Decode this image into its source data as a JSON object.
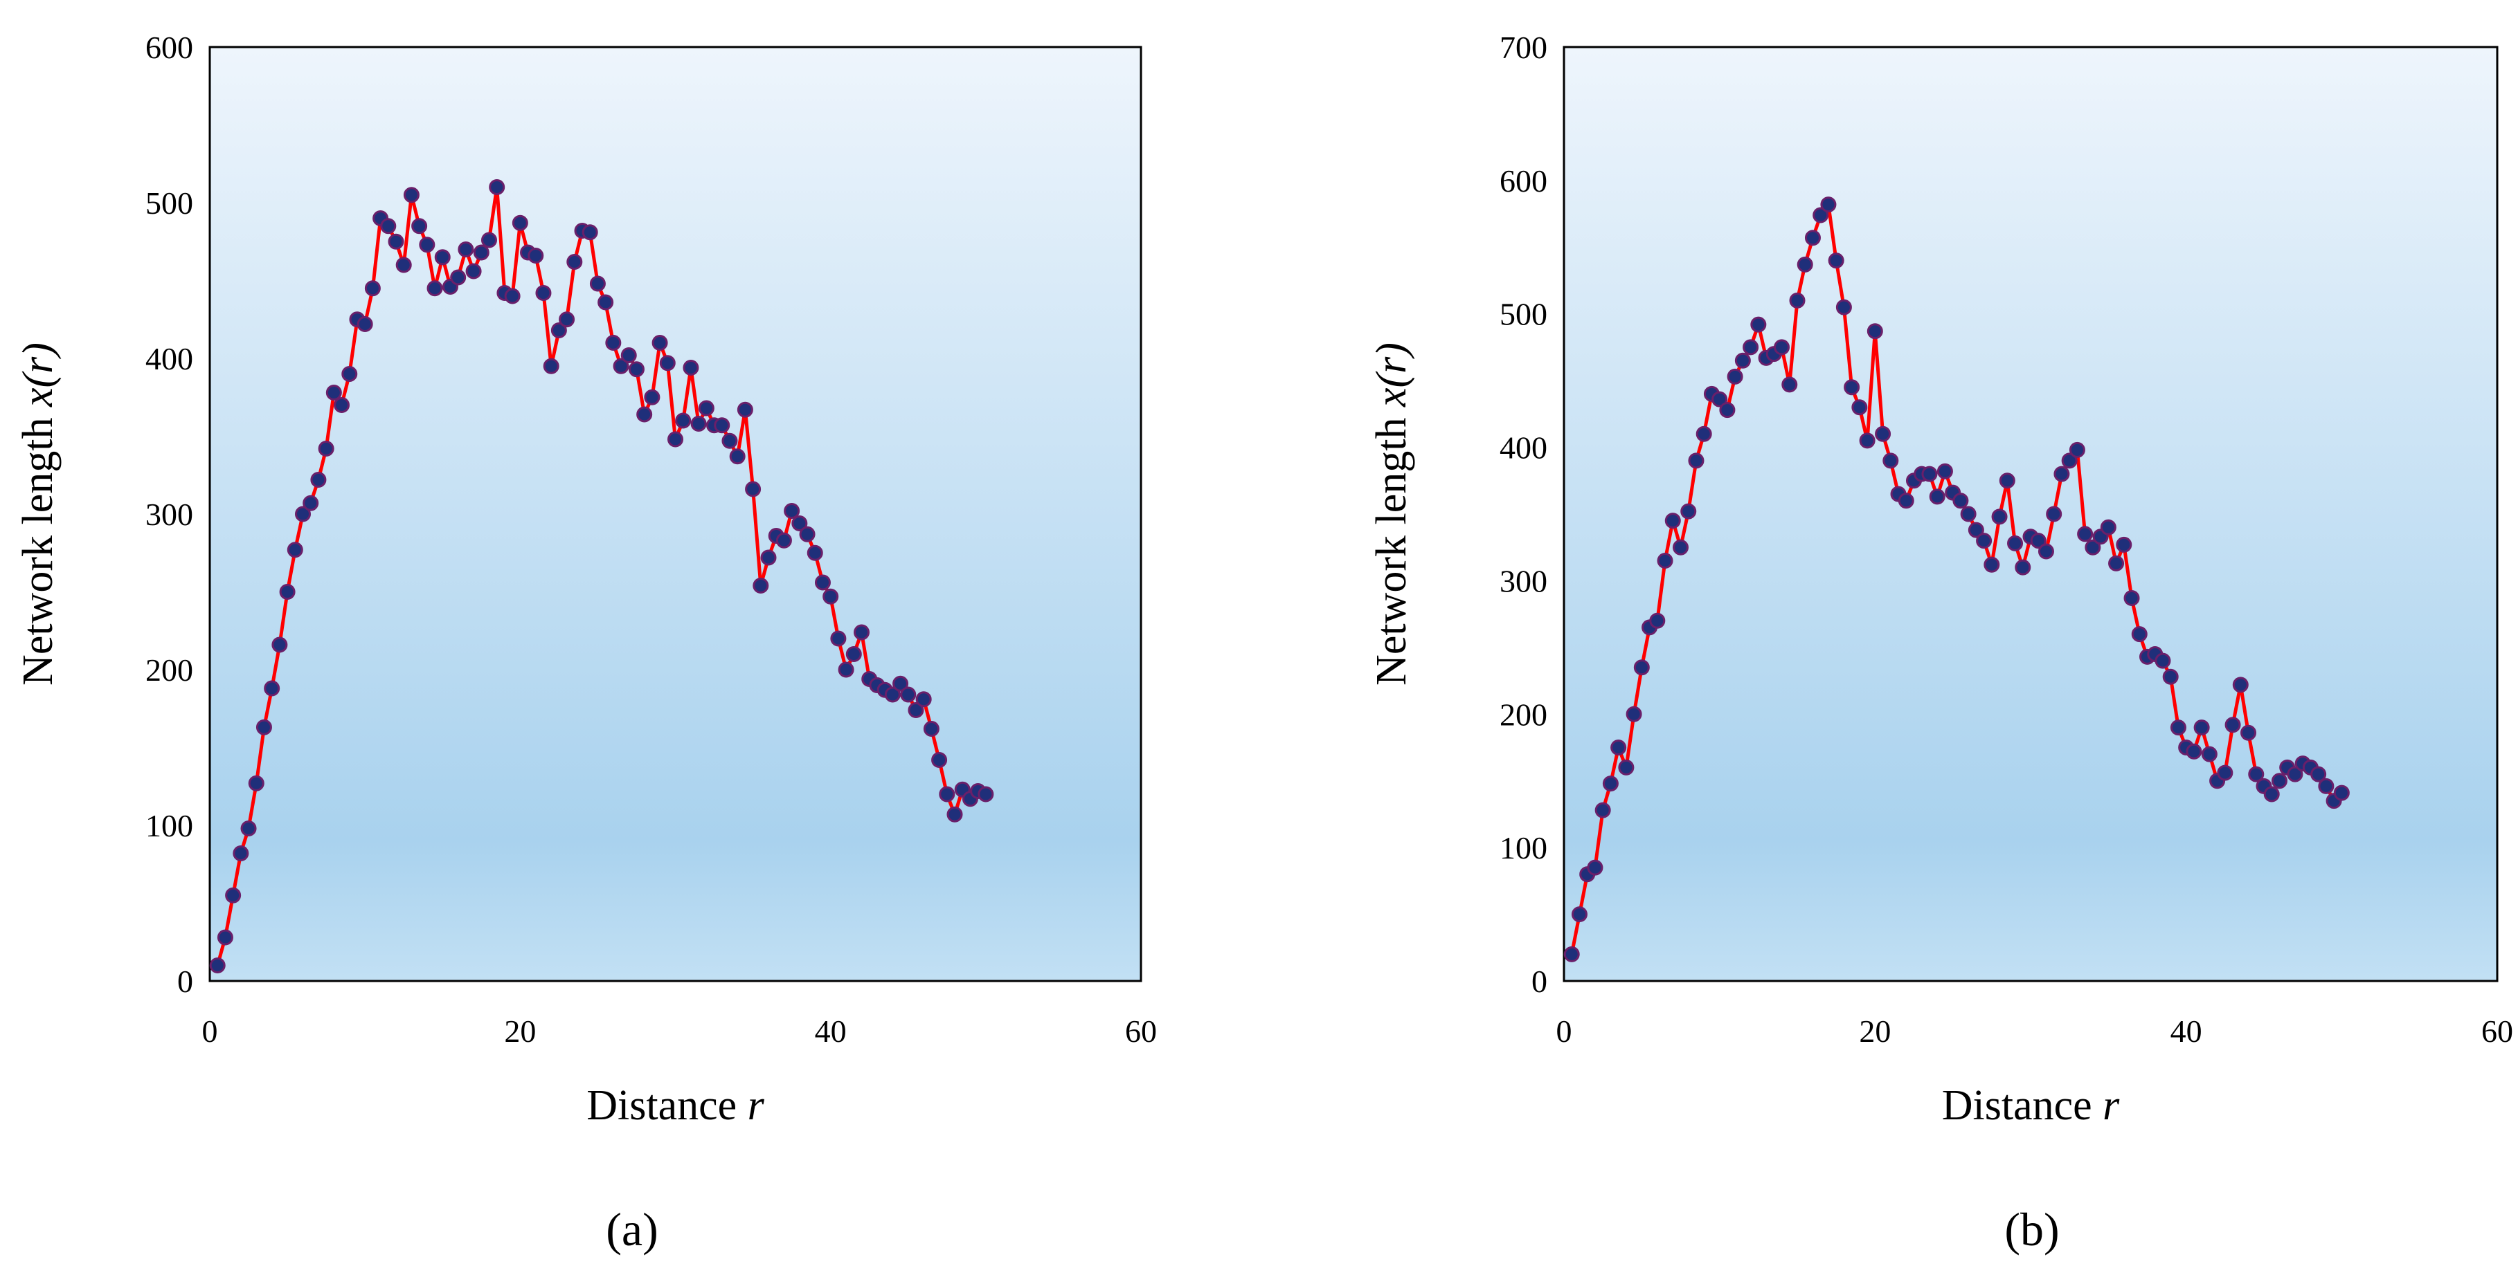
{
  "colors": {
    "line": "#ff0000",
    "marker_fill": "#1f2f7a",
    "marker_edge": "#6a1f6a",
    "bg_top": "#eef5fc",
    "bg_bottom": "#a9d2ee",
    "axis": "#000000"
  },
  "chart_data": [
    {
      "type": "line",
      "panel": "a",
      "panel_label": "(a)",
      "xlabel": "Distance r",
      "xlabel_main": "Distance ",
      "xlabel_var": "r",
      "ylabel": "Network length x(r)",
      "ylabel_main": "Network length ",
      "ylabel_var": "x(r)",
      "xlim": [
        0,
        60
      ],
      "ylim": [
        0,
        600
      ],
      "xticks": [
        0,
        20,
        40,
        60
      ],
      "yticks": [
        0,
        100,
        200,
        300,
        400,
        500,
        600
      ],
      "grid": false,
      "x": [
        0.5,
        1,
        1.5,
        2,
        2.5,
        3,
        3.5,
        4,
        4.5,
        5,
        5.5,
        6,
        6.5,
        7,
        7.5,
        8,
        8.5,
        9,
        9.5,
        10,
        10.5,
        11,
        11.5,
        12,
        12.5,
        13,
        13.5,
        14,
        14.5,
        15,
        15.5,
        16,
        16.5,
        17,
        17.5,
        18,
        18.5,
        19,
        19.5,
        20,
        20.5,
        21,
        21.5,
        22,
        22.5,
        23,
        23.5,
        24,
        24.5,
        25,
        25.5,
        26,
        26.5,
        27,
        27.5,
        28,
        28.5,
        29,
        29.5,
        30,
        30.5,
        31,
        31.5,
        32,
        32.5,
        33,
        33.5,
        34,
        34.5,
        35,
        35.5,
        36,
        36.5,
        37,
        37.5,
        38,
        38.5,
        39,
        39.5,
        40,
        40.5,
        41,
        41.5,
        42,
        42.5,
        43,
        43.5,
        44,
        44.5,
        45,
        45.5,
        46,
        46.5,
        47,
        47.5,
        48,
        48.5,
        49,
        49.5,
        50
      ],
      "values": [
        10,
        28,
        55,
        82,
        98,
        127,
        163,
        188,
        216,
        250,
        277,
        300,
        307,
        322,
        342,
        378,
        370,
        390,
        425,
        422,
        445,
        490,
        485,
        475,
        460,
        505,
        485,
        473,
        445,
        465,
        446,
        452,
        470,
        456,
        468,
        476,
        510,
        442,
        440,
        487,
        468,
        466,
        442,
        395,
        418,
        425,
        462,
        482,
        481,
        448,
        436,
        410,
        395,
        402,
        393,
        364,
        375,
        410,
        397,
        348,
        360,
        394,
        358,
        368,
        357,
        357,
        347,
        337,
        367,
        316,
        254,
        272,
        286,
        283,
        302,
        294,
        287,
        275,
        256,
        247,
        220,
        200,
        210,
        224,
        194,
        190,
        187,
        184,
        191,
        184,
        174,
        181,
        162,
        142,
        120,
        107,
        123,
        117,
        122,
        120
      ]
    },
    {
      "type": "line",
      "panel": "b",
      "panel_label": "(b)",
      "xlabel": "Distance r",
      "xlabel_main": "Distance ",
      "xlabel_var": "r",
      "ylabel": "Network length x(r)",
      "ylabel_main": "Network length ",
      "ylabel_var": "x(r)",
      "xlim": [
        0,
        60
      ],
      "ylim": [
        0,
        700
      ],
      "xticks": [
        0,
        20,
        40,
        60
      ],
      "yticks": [
        0,
        100,
        200,
        300,
        400,
        500,
        600,
        700
      ],
      "grid": false,
      "x": [
        0.5,
        1,
        1.5,
        2,
        2.5,
        3,
        3.5,
        4,
        4.5,
        5,
        5.5,
        6,
        6.5,
        7,
        7.5,
        8,
        8.5,
        9,
        9.5,
        10,
        10.5,
        11,
        11.5,
        12,
        12.5,
        13,
        13.5,
        14,
        14.5,
        15,
        15.5,
        16,
        16.5,
        17,
        17.5,
        18,
        18.5,
        19,
        19.5,
        20,
        20.5,
        21,
        21.5,
        22,
        22.5,
        23,
        23.5,
        24,
        24.5,
        25,
        25.5,
        26,
        26.5,
        27,
        27.5,
        28,
        28.5,
        29,
        29.5,
        30,
        30.5,
        31,
        31.5,
        32,
        32.5,
        33,
        33.5,
        34,
        34.5,
        35,
        35.5,
        36,
        36.5,
        37,
        37.5,
        38,
        38.5,
        39,
        39.5,
        40,
        40.5,
        41,
        41.5,
        42,
        42.5,
        43,
        43.5,
        44,
        44.5,
        45,
        45.5,
        46,
        46.5,
        47,
        47.5,
        48,
        48.5,
        49,
        49.5,
        50
      ],
      "values": [
        20,
        50,
        80,
        85,
        128,
        148,
        175,
        160,
        200,
        235,
        265,
        270,
        315,
        345,
        325,
        352,
        390,
        410,
        440,
        436,
        428,
        453,
        465,
        475,
        492,
        467,
        470,
        475,
        447,
        510,
        537,
        557,
        574,
        582,
        540,
        505,
        445,
        430,
        405,
        487,
        410,
        390,
        365,
        360,
        375,
        380,
        380,
        363,
        382,
        366,
        360,
        350,
        338,
        330,
        312,
        348,
        375,
        328,
        310,
        333,
        330,
        322,
        350,
        380,
        390,
        398,
        335,
        325,
        333,
        340,
        313,
        327,
        287,
        260,
        243,
        245,
        240,
        228,
        190,
        175,
        172,
        190,
        170,
        150,
        156,
        192,
        222,
        186,
        155,
        146,
        140,
        150,
        160,
        155,
        163,
        160,
        155,
        146,
        135,
        141
      ]
    }
  ]
}
